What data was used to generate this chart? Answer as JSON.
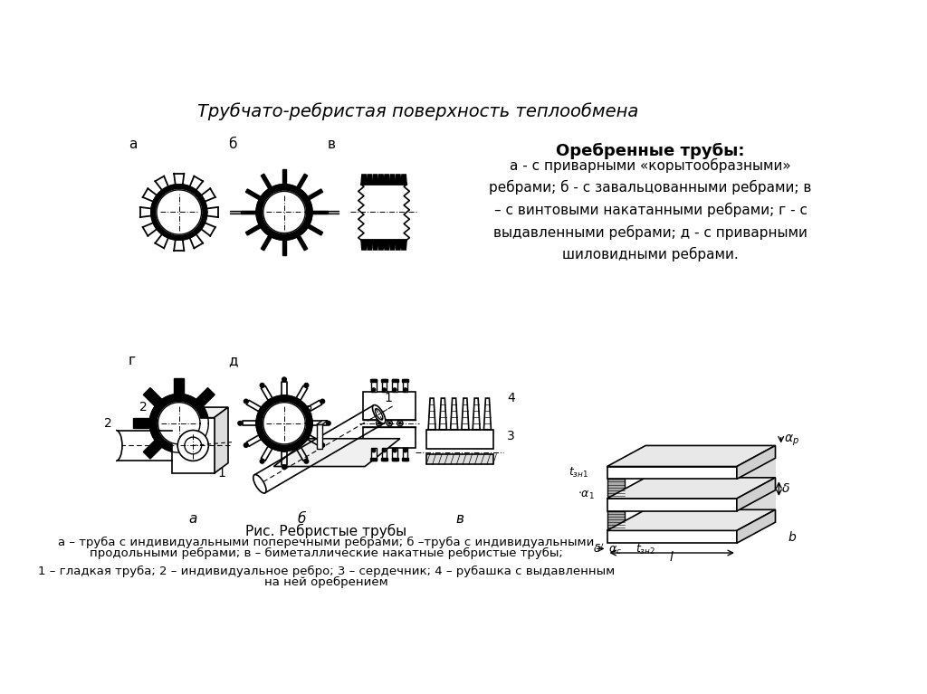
{
  "title": "Трубчато-ребристая поверхность теплообмена",
  "bg_color": "#ffffff",
  "text_color": "#000000",
  "right_box_title": "Оребренные трубы:",
  "right_box_body": "а - с приварными «корытообразными»\nребрами; б - с завальцованными ребрами; в\n– с винтовыми накатанными ребрами; г - с\nвыдавленными ребрами; д - с приварными\nшиловидными ребрами.",
  "caption_center": "Рис. Ребристые трубы",
  "caption_line1": "а – труба с индивидуальными поперечными ребрами; б –труба с индивидуальными",
  "caption_line2": "продольными ребрами; в – биметаллические накатные ребристые трубы;",
  "caption_line3": "1 – гладкая труба; 2 – индивидуальное ребро; 3 – сердечник; 4 – рубашка с выдавленным",
  "caption_line4": "на ней оребрением"
}
